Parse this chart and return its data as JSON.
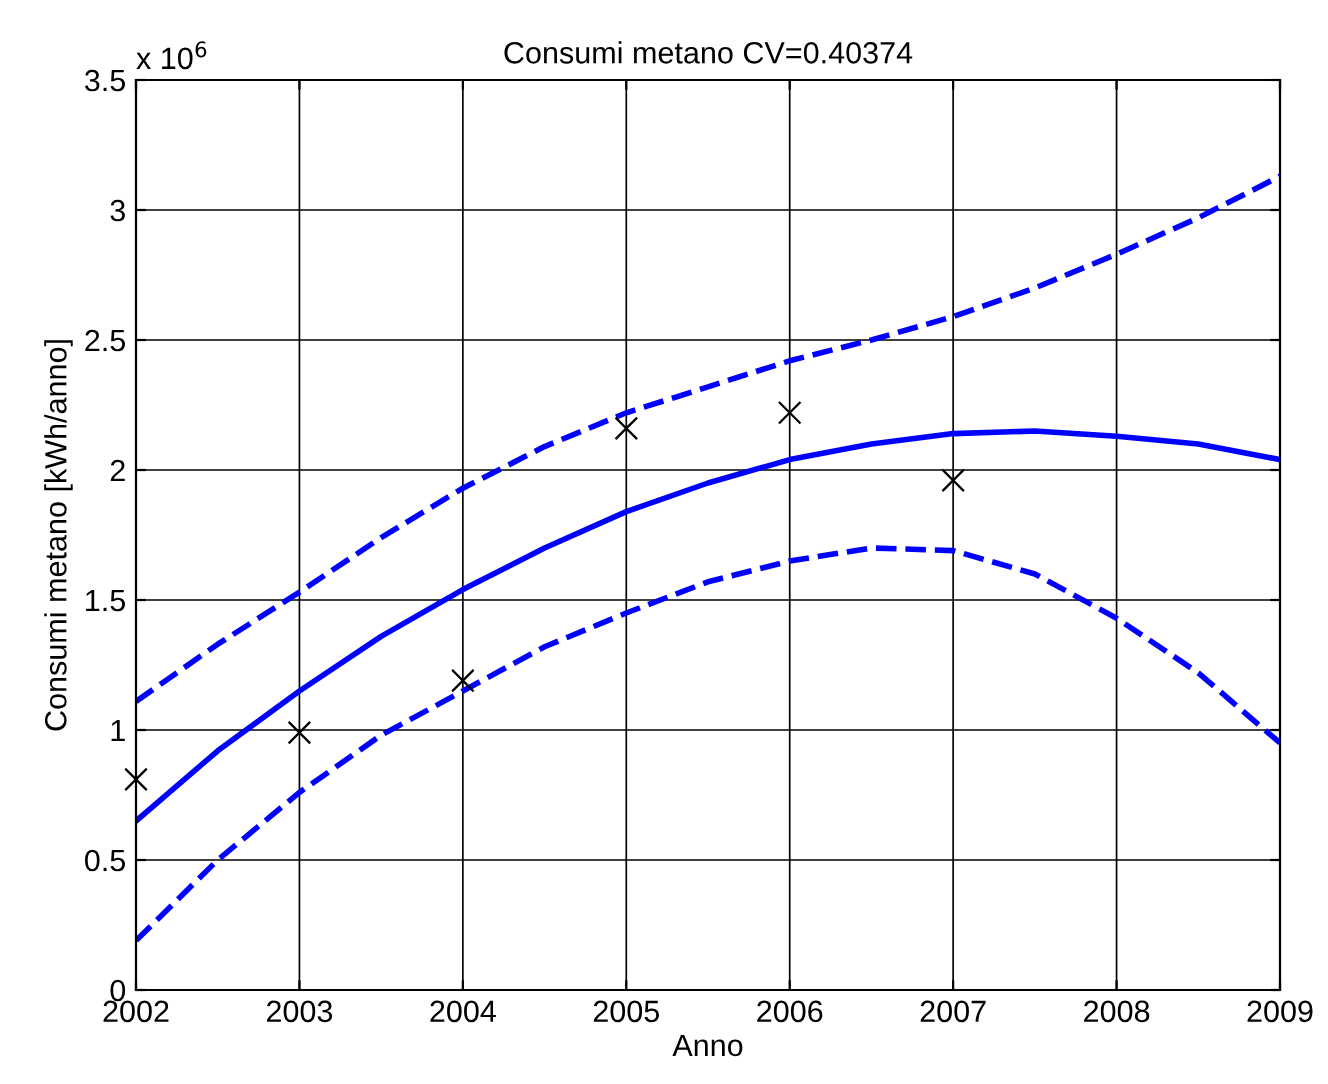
{
  "chart_data": {
    "type": "line",
    "title": "Consumi metano CV=0.40374",
    "xlabel": "Anno",
    "ylabel": "Consumi metano [kWh/anno]",
    "annotations": [
      "x 10$^{6}$"
    ],
    "xlim": [
      2002,
      2009
    ],
    "xticks": [
      2002,
      2003,
      2004,
      2005,
      2006,
      2007,
      2008,
      2009
    ],
    "ylim": [
      0,
      3.5
    ],
    "yticks": [
      0,
      0.5,
      1,
      1.5,
      2,
      2.5,
      3,
      3.5
    ],
    "grid": true,
    "series": [
      {
        "color": "#0000ff",
        "line_style": "solid",
        "marker": "none",
        "x": [
          2002,
          2002.5,
          2003,
          2003.5,
          2004,
          2004.5,
          2005,
          2005.5,
          2006,
          2006.5,
          2007,
          2007.5,
          2008,
          2008.5,
          2009
        ],
        "values": [
          0.65,
          0.92,
          1.15,
          1.36,
          1.54,
          1.7,
          1.84,
          1.95,
          2.04,
          2.1,
          2.14,
          2.15,
          2.13,
          2.1,
          2.04
        ]
      },
      {
        "type": "line",
        "color": "#0000ff",
        "line_style": "dashed",
        "marker": "none",
        "x": [
          2002,
          2002.5,
          2003,
          2003.5,
          2004,
          2004.5,
          2005,
          2005.5,
          2006,
          2006.5,
          2007,
          2007.5,
          2008,
          2008.5,
          2009
        ],
        "values": [
          1.11,
          1.33,
          1.53,
          1.74,
          1.93,
          2.09,
          2.22,
          2.32,
          2.42,
          2.5,
          2.59,
          2.7,
          2.83,
          2.97,
          3.13
        ]
      },
      {
        "type": "line",
        "color": "#0000ff",
        "line_style": "dashed",
        "marker": "none",
        "x": [
          2002,
          2002.5,
          2003,
          2003.5,
          2004,
          2004.5,
          2005,
          2005.5,
          2006,
          2006.5,
          2007,
          2007.5,
          2008,
          2008.5,
          2009
        ],
        "values": [
          0.19,
          0.5,
          0.76,
          0.98,
          1.15,
          1.32,
          1.45,
          1.57,
          1.65,
          1.7,
          1.69,
          1.6,
          1.43,
          1.22,
          0.95
        ]
      },
      {
        "type": "scatter",
        "color": "#000000",
        "marker": "cross",
        "x": [
          2002,
          2003,
          2004,
          2005,
          2006,
          2007
        ],
        "values": [
          0.81,
          0.99,
          1.19,
          2.16,
          2.22,
          1.96
        ]
      }
    ]
  }
}
